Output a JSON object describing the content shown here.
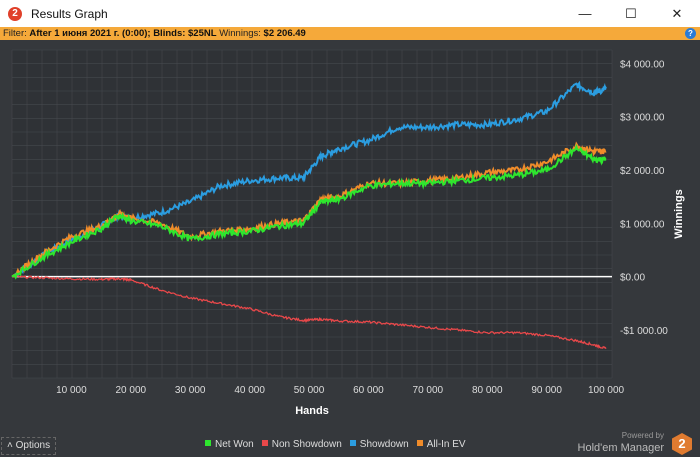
{
  "window": {
    "title": "Results Graph",
    "minimize": "—",
    "maximize": "☐",
    "close": "✕"
  },
  "filter": {
    "label": "Filter:",
    "value": "After 1 июня 2021 г. (0:00); Blinds: $25NL",
    "winnings_label": "Winnings:",
    "winnings_value": "$2 206.49",
    "help": "?"
  },
  "options_label": "Options",
  "powered_by": "Powered by",
  "brand": "Hold'em Manager",
  "brand_logo": "2",
  "chart_data": {
    "type": "line",
    "xlabel": "Hands",
    "ylabel": "Winnings",
    "xlim": [
      0,
      101000
    ],
    "ylim": [
      -1900,
      4250
    ],
    "xticks": [
      10000,
      20000,
      30000,
      40000,
      50000,
      60000,
      70000,
      80000,
      90000,
      100000
    ],
    "xtick_labels": [
      "10 000",
      "20 000",
      "30 000",
      "40 000",
      "50 000",
      "60 000",
      "70 000",
      "80 000",
      "90 000",
      "100 000"
    ],
    "yticks": [
      4000,
      3000,
      2000,
      1000,
      0,
      -1000
    ],
    "ytick_labels": [
      "$4 000.00",
      "$3 000.00",
      "$2 000.00",
      "$1 000.00",
      "$0.00",
      "-$1 000.00"
    ],
    "x": [
      0,
      5000,
      10000,
      15000,
      18000,
      20000,
      25000,
      30000,
      35000,
      40000,
      45000,
      49000,
      52000,
      55000,
      60000,
      65000,
      70000,
      75000,
      80000,
      85000,
      90000,
      95000,
      98000,
      100000
    ],
    "series": [
      {
        "name": "Net Won",
        "color": "#2ee62e",
        "values": [
          0,
          350,
          650,
          900,
          1150,
          1050,
          950,
          700,
          800,
          850,
          950,
          1000,
          1400,
          1450,
          1700,
          1750,
          1750,
          1800,
          1850,
          1900,
          2000,
          2400,
          2200,
          2200
        ]
      },
      {
        "name": "Non Showdown",
        "color": "#e8484a",
        "values": [
          0,
          -20,
          -40,
          -50,
          -40,
          -60,
          -250,
          -400,
          -500,
          -600,
          -750,
          -820,
          -800,
          -830,
          -850,
          -900,
          -950,
          -1000,
          -1050,
          -1050,
          -1100,
          -1200,
          -1280,
          -1350
        ]
      },
      {
        "name": "Showdown",
        "color": "#2b9de0",
        "values": [
          0,
          380,
          700,
          950,
          1150,
          1100,
          1200,
          1400,
          1700,
          1800,
          1850,
          1850,
          2250,
          2400,
          2550,
          2800,
          2800,
          2850,
          2850,
          2950,
          3100,
          3600,
          3450,
          3530
        ]
      },
      {
        "name": "All-In EV",
        "color": "#f08c2a",
        "values": [
          0,
          420,
          750,
          950,
          1180,
          1100,
          1000,
          750,
          850,
          900,
          1000,
          1050,
          1450,
          1500,
          1750,
          1750,
          1800,
          1850,
          1950,
          2000,
          2150,
          2450,
          2350,
          2350
        ]
      }
    ]
  }
}
